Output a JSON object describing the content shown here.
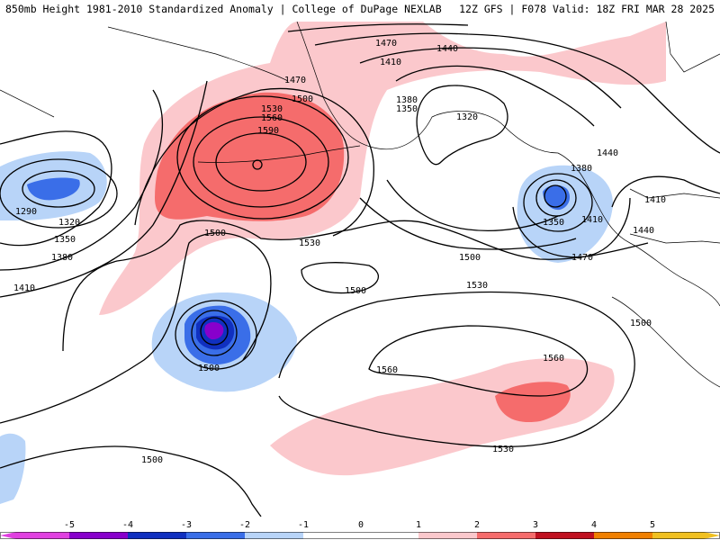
{
  "header": {
    "title_left": "850mb Height 1981-2010 Standardized Anomaly | College of DuPage NEXLAB",
    "title_right": "12Z GFS | F078 Valid: 18Z FRI MAR 28 2025"
  },
  "contour_labels": {
    "l1470a": "1470",
    "l1440a": "1440",
    "l1410a": "1410",
    "l1470b": "1470",
    "l1500a": "1500",
    "l1530a": "1530",
    "l1560a": "1560",
    "l1590a": "1590",
    "l1380a": "1380",
    "l1350a": "1350",
    "l1320a": "1320",
    "l1290w": "1290",
    "l1320w": "1320",
    "l1350w": "1350",
    "l1380w": "1380",
    "l1410w": "1410",
    "l1500b": "1500",
    "l1530b": "1530",
    "l1500c": "1500",
    "l1500d": "1500",
    "l1500e": "1500",
    "l1380e": "1380",
    "l1350e": "1350",
    "l1410e": "1410",
    "l1470e": "1470",
    "l1440e": "1440",
    "l1410f": "1410",
    "l1500f": "1500",
    "l1530c": "1530",
    "l1560b": "1560",
    "l1560c": "1560",
    "l1530d": "1530",
    "l1440f": "1440",
    "l1500g": "1500"
  },
  "colorbar": {
    "ticks": [
      "-5",
      "-4",
      "-3",
      "-2",
      "-1",
      "0",
      "1",
      "2",
      "3",
      "4",
      "5"
    ],
    "colors": {
      "neg5": "#e040e0",
      "neg4": "#8800cc",
      "neg3": "#1030c0",
      "neg2": "#3a6ee8",
      "neg1": "#b8d4f8",
      "zero": "#ffffff",
      "pos1": "#fbc8cc",
      "pos2": "#f56c6c",
      "pos3": "#c01020",
      "pos4": "#f08000",
      "pos5": "#f0c020"
    }
  }
}
